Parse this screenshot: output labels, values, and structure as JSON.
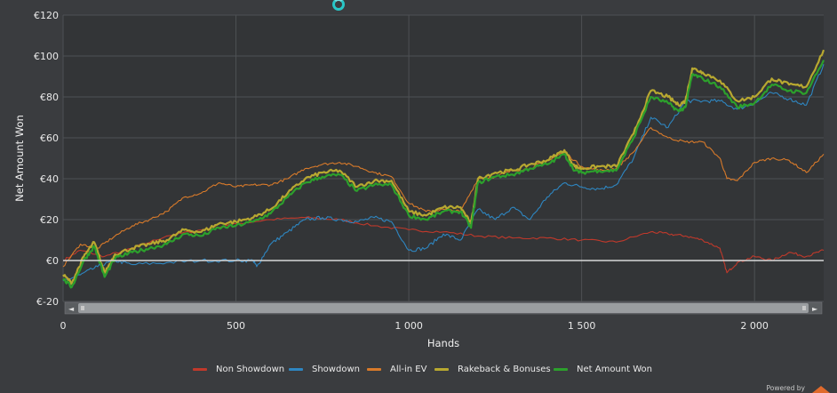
{
  "chart_data": {
    "type": "line",
    "xlabel": "Hands",
    "ylabel": "Net Amount Won",
    "xlim": [
      0,
      2200
    ],
    "ylim": [
      -20,
      120
    ],
    "x_ticks": [
      0,
      500,
      1000,
      1500,
      2000
    ],
    "x_tick_labels": [
      "0",
      "500",
      "1 000",
      "1 500",
      "2 000"
    ],
    "y_ticks": [
      -20,
      0,
      20,
      40,
      60,
      80,
      100,
      120
    ],
    "y_tick_labels": [
      "€-20",
      "€0",
      "€20",
      "€40",
      "€60",
      "€80",
      "€100",
      "€120"
    ],
    "grid": true,
    "legend_position": "bottom",
    "series": [
      {
        "name": "Non Showdown",
        "color": "#c0392b",
        "points": [
          [
            0,
            0
          ],
          [
            50,
            5
          ],
          [
            120,
            2
          ],
          [
            200,
            6
          ],
          [
            300,
            12
          ],
          [
            400,
            15
          ],
          [
            500,
            18
          ],
          [
            600,
            20
          ],
          [
            700,
            21
          ],
          [
            800,
            20
          ],
          [
            900,
            17
          ],
          [
            1000,
            15
          ],
          [
            1100,
            14
          ],
          [
            1200,
            12
          ],
          [
            1300,
            11
          ],
          [
            1400,
            11
          ],
          [
            1500,
            10
          ],
          [
            1600,
            9
          ],
          [
            1700,
            14
          ],
          [
            1750,
            13
          ],
          [
            1800,
            12
          ],
          [
            1850,
            10
          ],
          [
            1900,
            6
          ],
          [
            1920,
            -6
          ],
          [
            1950,
            -1
          ],
          [
            2000,
            2
          ],
          [
            2050,
            0
          ],
          [
            2100,
            4
          ],
          [
            2150,
            2
          ],
          [
            2200,
            5
          ]
        ]
      },
      {
        "name": "Showdown",
        "color": "#2e86c1",
        "points": [
          [
            0,
            -10
          ],
          [
            50,
            -7
          ],
          [
            100,
            -3
          ],
          [
            150,
            0
          ],
          [
            200,
            -2
          ],
          [
            300,
            -1
          ],
          [
            400,
            0
          ],
          [
            500,
            0
          ],
          [
            550,
            0
          ],
          [
            560,
            -3
          ],
          [
            600,
            8
          ],
          [
            650,
            14
          ],
          [
            700,
            20
          ],
          [
            750,
            21
          ],
          [
            800,
            20
          ],
          [
            850,
            19
          ],
          [
            900,
            21
          ],
          [
            950,
            19
          ],
          [
            1000,
            5
          ],
          [
            1050,
            6
          ],
          [
            1100,
            13
          ],
          [
            1150,
            10
          ],
          [
            1200,
            25
          ],
          [
            1250,
            20
          ],
          [
            1300,
            26
          ],
          [
            1350,
            20
          ],
          [
            1400,
            31
          ],
          [
            1450,
            38
          ],
          [
            1500,
            36
          ],
          [
            1550,
            35
          ],
          [
            1600,
            37
          ],
          [
            1650,
            50
          ],
          [
            1700,
            70
          ],
          [
            1750,
            65
          ],
          [
            1800,
            78
          ],
          [
            1850,
            78
          ],
          [
            1900,
            78
          ],
          [
            1950,
            74
          ],
          [
            2000,
            77
          ],
          [
            2050,
            82
          ],
          [
            2100,
            79
          ],
          [
            2150,
            76
          ],
          [
            2200,
            96
          ]
        ]
      },
      {
        "name": "All-in EV",
        "color": "#d87a2a",
        "points": [
          [
            0,
            -3
          ],
          [
            50,
            8
          ],
          [
            100,
            6
          ],
          [
            150,
            12
          ],
          [
            200,
            17
          ],
          [
            250,
            20
          ],
          [
            300,
            24
          ],
          [
            350,
            31
          ],
          [
            400,
            33
          ],
          [
            450,
            38
          ],
          [
            500,
            36
          ],
          [
            550,
            37
          ],
          [
            600,
            37
          ],
          [
            650,
            40
          ],
          [
            700,
            45
          ],
          [
            750,
            47
          ],
          [
            800,
            48
          ],
          [
            850,
            46
          ],
          [
            900,
            43
          ],
          [
            950,
            41
          ],
          [
            1000,
            28
          ],
          [
            1050,
            24
          ],
          [
            1100,
            25
          ],
          [
            1150,
            24
          ],
          [
            1200,
            40
          ],
          [
            1250,
            41
          ],
          [
            1300,
            44
          ],
          [
            1350,
            45
          ],
          [
            1400,
            49
          ],
          [
            1450,
            53
          ],
          [
            1500,
            46
          ],
          [
            1550,
            44
          ],
          [
            1600,
            45
          ],
          [
            1650,
            53
          ],
          [
            1700,
            65
          ],
          [
            1750,
            60
          ],
          [
            1800,
            58
          ],
          [
            1850,
            58
          ],
          [
            1900,
            50
          ],
          [
            1920,
            40
          ],
          [
            1950,
            39
          ],
          [
            2000,
            48
          ],
          [
            2050,
            50
          ],
          [
            2100,
            49
          ],
          [
            2150,
            43
          ],
          [
            2200,
            52
          ]
        ]
      },
      {
        "name": "Rakeback & Bonuses",
        "color": "#b8a830",
        "points": [
          [
            0,
            -7
          ],
          [
            25,
            -11
          ],
          [
            60,
            2
          ],
          [
            90,
            9
          ],
          [
            120,
            -6
          ],
          [
            150,
            3
          ],
          [
            200,
            6
          ],
          [
            250,
            8
          ],
          [
            300,
            10
          ],
          [
            350,
            15
          ],
          [
            400,
            14
          ],
          [
            450,
            18
          ],
          [
            500,
            19
          ],
          [
            550,
            21
          ],
          [
            600,
            25
          ],
          [
            650,
            33
          ],
          [
            700,
            40
          ],
          [
            750,
            43
          ],
          [
            800,
            44
          ],
          [
            850,
            36
          ],
          [
            900,
            39
          ],
          [
            950,
            39
          ],
          [
            1000,
            24
          ],
          [
            1050,
            22
          ],
          [
            1100,
            26
          ],
          [
            1150,
            26
          ],
          [
            1180,
            18
          ],
          [
            1200,
            40
          ],
          [
            1250,
            43
          ],
          [
            1300,
            44
          ],
          [
            1350,
            47
          ],
          [
            1400,
            49
          ],
          [
            1450,
            54
          ],
          [
            1480,
            46
          ],
          [
            1500,
            45
          ],
          [
            1550,
            46
          ],
          [
            1600,
            46
          ],
          [
            1650,
            62
          ],
          [
            1700,
            83
          ],
          [
            1750,
            80
          ],
          [
            1780,
            76
          ],
          [
            1800,
            78
          ],
          [
            1820,
            94
          ],
          [
            1850,
            92
          ],
          [
            1900,
            88
          ],
          [
            1950,
            78
          ],
          [
            2000,
            80
          ],
          [
            2050,
            89
          ],
          [
            2100,
            86
          ],
          [
            2150,
            85
          ],
          [
            2200,
            103
          ]
        ]
      },
      {
        "name": "Net Amount Won",
        "color": "#2ca02c",
        "points": [
          [
            0,
            -9
          ],
          [
            25,
            -13
          ],
          [
            60,
            0
          ],
          [
            90,
            7
          ],
          [
            120,
            -8
          ],
          [
            150,
            1
          ],
          [
            200,
            4
          ],
          [
            250,
            6
          ],
          [
            300,
            8
          ],
          [
            350,
            13
          ],
          [
            400,
            12
          ],
          [
            450,
            16
          ],
          [
            500,
            17
          ],
          [
            550,
            19
          ],
          [
            600,
            23
          ],
          [
            650,
            31
          ],
          [
            700,
            38
          ],
          [
            750,
            41
          ],
          [
            800,
            42
          ],
          [
            850,
            34
          ],
          [
            900,
            37
          ],
          [
            950,
            37
          ],
          [
            1000,
            22
          ],
          [
            1050,
            20
          ],
          [
            1100,
            24
          ],
          [
            1150,
            24
          ],
          [
            1180,
            16
          ],
          [
            1200,
            38
          ],
          [
            1250,
            41
          ],
          [
            1300,
            42
          ],
          [
            1350,
            45
          ],
          [
            1400,
            47
          ],
          [
            1450,
            52
          ],
          [
            1480,
            44
          ],
          [
            1500,
            43
          ],
          [
            1550,
            44
          ],
          [
            1600,
            44
          ],
          [
            1650,
            60
          ],
          [
            1700,
            80
          ],
          [
            1750,
            77
          ],
          [
            1780,
            73
          ],
          [
            1800,
            75
          ],
          [
            1820,
            91
          ],
          [
            1850,
            89
          ],
          [
            1900,
            85
          ],
          [
            1950,
            75
          ],
          [
            2000,
            77
          ],
          [
            2050,
            86
          ],
          [
            2100,
            83
          ],
          [
            2150,
            82
          ],
          [
            2200,
            98
          ]
        ]
      }
    ]
  },
  "legend": [
    {
      "label": "Non Showdown",
      "color": "#c0392b"
    },
    {
      "label": "Showdown",
      "color": "#2e86c1"
    },
    {
      "label": "All-in EV",
      "color": "#d87a2a"
    },
    {
      "label": "Rakeback & Bonuses",
      "color": "#b8a830"
    },
    {
      "label": "Net Amount Won",
      "color": "#2ca02c"
    }
  ],
  "scrollbar": {
    "left_arrow": "◄",
    "right_arrow": "►"
  },
  "footer": {
    "powered": "Powered by"
  },
  "icons": {
    "loading": "loading-spinner-icon",
    "brand": "brand-logo-icon"
  }
}
